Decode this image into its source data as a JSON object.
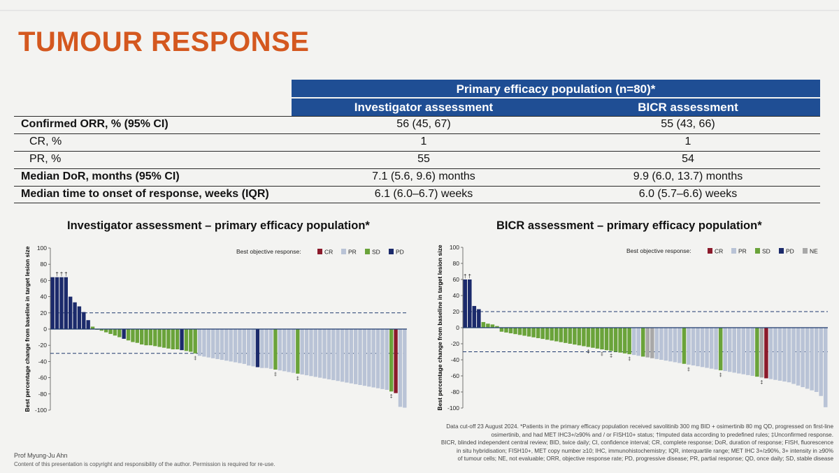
{
  "title": "TUMOUR RESPONSE",
  "table": {
    "header_main": "Primary efficacy population (n=80)*",
    "col1": "Investigator assessment",
    "col2": "BICR assessment",
    "rows": [
      {
        "label": "Confirmed ORR, % (95% CI)",
        "inv": "56 (45, 67)",
        "bicr": "55 (43, 66)"
      },
      {
        "label": "CR, %",
        "inv": "1",
        "bicr": "1"
      },
      {
        "label": "PR, %",
        "inv": "55",
        "bicr": "54"
      },
      {
        "label": "Median DoR, months (95% CI)",
        "inv": "7.1 (5.6, 9.6) months",
        "bicr": "9.9 (6.0, 13.7) months"
      },
      {
        "label": "Median time to onset of response, weeks (IQR)",
        "inv": "6.1 (6.0–6.7) weeks",
        "bicr": "6.0 (5.7–6.6) weeks"
      }
    ]
  },
  "colors": {
    "CR": "#8b1a2b",
    "PR": "#b9c3d6",
    "SD": "#6aa33a",
    "PD": "#1b2a6b",
    "NE": "#a8a8a8",
    "accent": "#d4581f",
    "header": "#1f4e94"
  },
  "chart_data": [
    {
      "type": "bar",
      "title": "Investigator assessment – primary efficacy population*",
      "ylabel": "Best percentage change from baseline in target lesion size",
      "ylim": [
        -100,
        100
      ],
      "yticks": [
        "100",
        "80",
        "60",
        "40",
        "20",
        "0",
        "-20",
        "-40",
        "-60",
        "-80",
        "-100"
      ],
      "reference_lines": [
        20,
        -30
      ],
      "legend_title": "Best objective response:",
      "legend": [
        "CR",
        "PR",
        "SD",
        "PD"
      ],
      "markers": {
        "dagger": "†",
        "ddagger": "‡"
      },
      "values": [
        64,
        64,
        64,
        64,
        40,
        33,
        28,
        21,
        11,
        3,
        0,
        -2,
        -4,
        -6,
        -8,
        -10,
        -12,
        -14,
        -16,
        -17,
        -19,
        -20,
        -20,
        -21,
        -22,
        -23,
        -24,
        -25,
        -25,
        -26,
        -27,
        -28,
        -30,
        -33,
        -34,
        -35,
        -36,
        -37,
        -38,
        -39,
        -40,
        -41,
        -42,
        -43,
        -45,
        -46,
        -47,
        -48,
        -48,
        -49,
        -50,
        -51,
        -52,
        -53,
        -54,
        -55,
        -56,
        -57,
        -58,
        -59,
        -60,
        -61,
        -62,
        -63,
        -64,
        -65,
        -66,
        -67,
        -68,
        -69,
        -70,
        -71,
        -72,
        -73,
        -74,
        -75,
        -77,
        -79,
        -96,
        -97
      ],
      "responses": [
        "PD",
        "PD",
        "PD",
        "PD",
        "PD",
        "PD",
        "PD",
        "PD",
        "PD",
        "SD",
        "SD",
        "SD",
        "SD",
        "SD",
        "SD",
        "SD",
        "PD",
        "SD",
        "SD",
        "SD",
        "SD",
        "SD",
        "SD",
        "SD",
        "SD",
        "SD",
        "SD",
        "SD",
        "SD",
        "PD",
        "SD",
        "SD",
        "SD",
        "PR",
        "PR",
        "PR",
        "PR",
        "PR",
        "PR",
        "PR",
        "PR",
        "PR",
        "PR",
        "PR",
        "PR",
        "PR",
        "PD",
        "PR",
        "PR",
        "PR",
        "SD",
        "PR",
        "PR",
        "PR",
        "PR",
        "SD",
        "PR",
        "PR",
        "PR",
        "PR",
        "PR",
        "PR",
        "PR",
        "PR",
        "PR",
        "PR",
        "PR",
        "PR",
        "PR",
        "PR",
        "PR",
        "PR",
        "PR",
        "PR",
        "PR",
        "PR",
        "SD",
        "CR",
        "PR",
        "PR"
      ],
      "dagger_bars": [
        1,
        2,
        3
      ],
      "ddagger_bars": [
        32,
        50,
        55,
        76
      ]
    },
    {
      "type": "bar",
      "title": "BICR assessment – primary efficacy population*",
      "ylabel": "Best percentage change from baseline in target lesion size",
      "ylim": [
        -100,
        100
      ],
      "yticks": [
        "100",
        "80",
        "60",
        "40",
        "20",
        "0",
        "-20",
        "-40",
        "-60",
        "-80",
        "-100"
      ],
      "reference_lines": [
        20,
        -30
      ],
      "legend_title": "Best objective response:",
      "legend": [
        "CR",
        "PR",
        "SD",
        "PD",
        "NE"
      ],
      "markers": {
        "dagger": "†",
        "ddagger": "‡"
      },
      "values": [
        60,
        60,
        27,
        23,
        7,
        5,
        4,
        2,
        -5,
        -6,
        -7,
        -8,
        -9,
        -10,
        -11,
        -12,
        -13,
        -14,
        -15,
        -16,
        -17,
        -18,
        -19,
        -20,
        -21,
        -22,
        -23,
        -24,
        -25,
        -26,
        -27,
        -28,
        -29,
        -30,
        -31,
        -32,
        -33,
        -34,
        -35,
        -36,
        -37,
        -38,
        -39,
        -40,
        -41,
        -42,
        -43,
        -44,
        -45,
        -46,
        -47,
        -48,
        -49,
        -50,
        -51,
        -52,
        -53,
        -54,
        -55,
        -56,
        -57,
        -58,
        -59,
        -60,
        -61,
        -62,
        -63,
        -64,
        -65,
        -66,
        -67,
        -68,
        -70,
        -72,
        -74,
        -76,
        -78,
        -80,
        -85,
        -99
      ],
      "responses": [
        "PD",
        "PD",
        "PD",
        "PD",
        "SD",
        "SD",
        "SD",
        "SD",
        "SD",
        "SD",
        "SD",
        "SD",
        "SD",
        "SD",
        "SD",
        "SD",
        "SD",
        "SD",
        "SD",
        "SD",
        "SD",
        "SD",
        "SD",
        "SD",
        "SD",
        "SD",
        "SD",
        "SD",
        "SD",
        "SD",
        "SD",
        "SD",
        "SD",
        "SD",
        "SD",
        "SD",
        "SD",
        "PR",
        "PR",
        "SD",
        "NE",
        "NE",
        "PR",
        "PR",
        "PR",
        "PR",
        "PR",
        "PR",
        "SD",
        "PR",
        "PR",
        "PR",
        "PR",
        "PR",
        "PR",
        "PR",
        "SD",
        "PR",
        "PR",
        "PR",
        "PR",
        "PR",
        "PR",
        "PR",
        "SD",
        "NE",
        "CR",
        "PR",
        "PR",
        "PR",
        "PR",
        "PR",
        "PR",
        "PR",
        "PR",
        "PR",
        "PR",
        "PR",
        "PR",
        "PR"
      ],
      "dagger_bars": [
        0,
        1
      ],
      "ddagger_bars": [
        27,
        30,
        32,
        36,
        49,
        56,
        65
      ]
    }
  ],
  "footer": {
    "author": "Prof Myung-Ju Ahn",
    "copyright": "Content of this presentation is copyright and responsibility of the author. Permission is required for re-use.",
    "footnote_lines": [
      "Data cut-off 23 August 2024. *Patients in the primary efficacy population received savolitinib 300 mg BID + osimertinib 80 mg QD, progressed on first-line",
      "osimertinib, and had MET IHC3+/≥90% and / or FISH10+ status; †Imputed data according to predefined rules; ‡Unconfirmed response.",
      "BICR, blinded independent central review; BID, twice daily; CI, confidence interval; CR, complete response; DoR, duration of response; FISH, fluorescence",
      "in situ hybridisation; FISH10+, MET copy number ≥10; IHC, immunohistochemistry; IQR, interquartile range; MET IHC 3+/≥90%, 3+ intensity in ≥90%",
      "of tumour cells; NE, not evaluable; ORR, objective response rate; PD, progressive disease; PR, partial response; QD, once daily; SD, stable disease"
    ]
  }
}
